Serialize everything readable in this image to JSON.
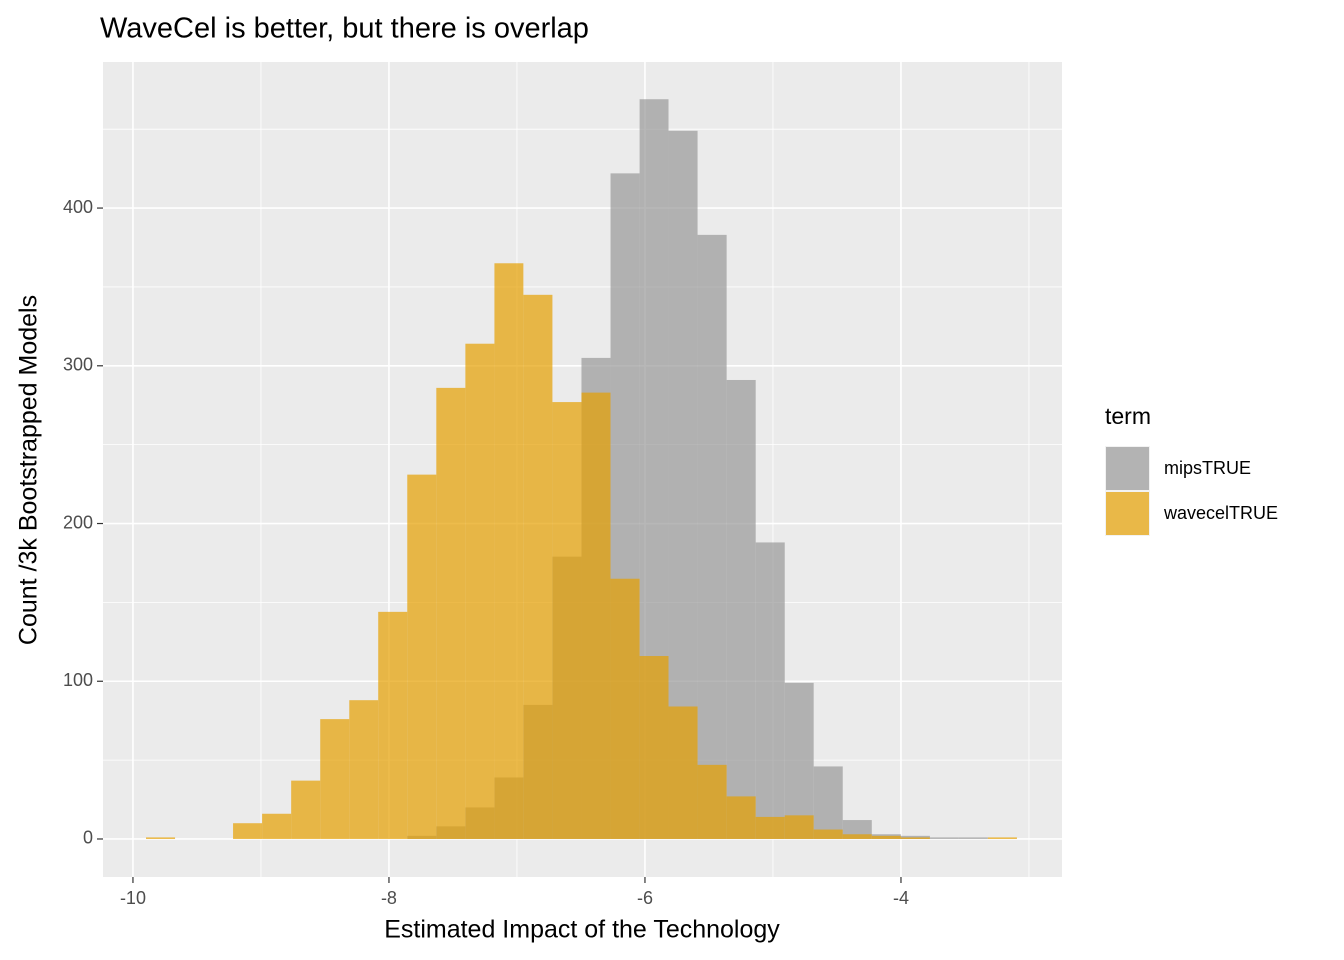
{
  "chart_data": {
    "type": "histogram",
    "title": "WaveCel is better, but there is overlap",
    "x_label": "Estimated Impact of the Technology",
    "y_label": "Count /3k Bootstrapped Models",
    "bins": [
      -9.898,
      -9.671,
      -9.444,
      -9.218,
      -8.991,
      -8.764,
      -8.537,
      -8.31,
      -8.084,
      -7.857,
      -7.63,
      -7.403,
      -7.176,
      -6.95,
      -6.723,
      -6.496,
      -6.269,
      -6.042,
      -5.816,
      -5.589,
      -5.362,
      -5.135,
      -4.908,
      -4.682,
      -4.455,
      -4.228,
      -4.001,
      -3.774,
      -3.548,
      -3.321,
      -3.094
    ],
    "series": [
      {
        "name": "mipsTRUE",
        "color": "#999999",
        "values": [
          0,
          0,
          0,
          0,
          0,
          0,
          0,
          0,
          0,
          2,
          8,
          20,
          39,
          85,
          179,
          305,
          422,
          469,
          449,
          383,
          291,
          188,
          99,
          46,
          12,
          3,
          2,
          1,
          1,
          0
        ]
      },
      {
        "name": "wavecelTRUE",
        "color": "#E69F00",
        "values": [
          1,
          0,
          0,
          10,
          16,
          37,
          76,
          88,
          144,
          231,
          286,
          314,
          365,
          345,
          277,
          283,
          165,
          116,
          84,
          47,
          27,
          14,
          15,
          6,
          3,
          2,
          1,
          0,
          0,
          1
        ]
      }
    ],
    "alpha": 0.7,
    "legend_title": "term",
    "legend_position": "right",
    "xlim": [
      -10.234,
      -2.742
    ],
    "xticks": [
      -10,
      -8,
      -6,
      -4
    ],
    "ylim": [
      -24.1,
      492.6
    ],
    "yticks": [
      0,
      100,
      200,
      300,
      400
    ],
    "grid": true
  }
}
